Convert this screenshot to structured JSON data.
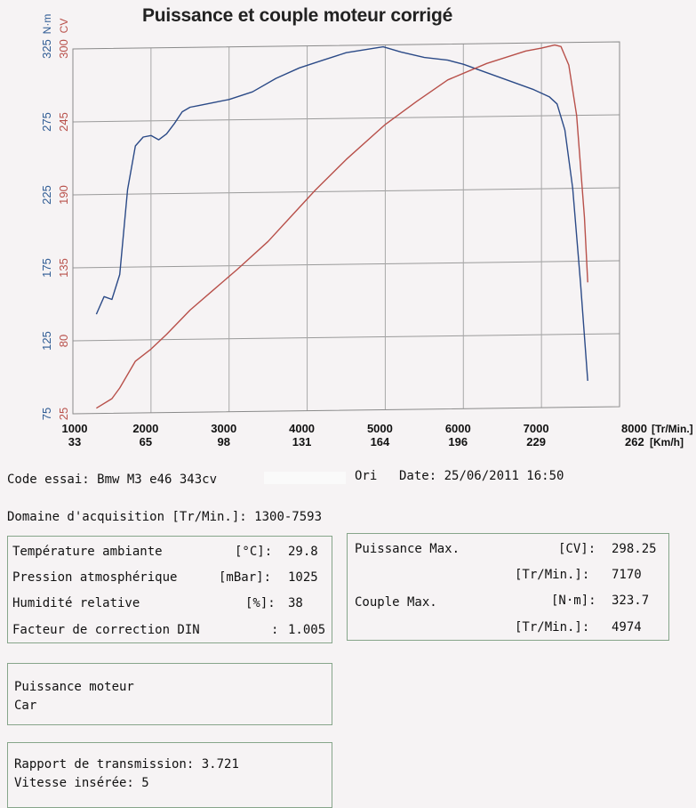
{
  "chart_data": {
    "type": "line",
    "title": "Puissance et couple moteur corrigé",
    "x_unit": "[Tr/Min.]",
    "x2_unit": "[Km/h]",
    "xlim": [
      1000,
      8000
    ],
    "x_ticks": [
      1000,
      2000,
      3000,
      4000,
      5000,
      6000,
      7000,
      8000
    ],
    "x2_ticks": [
      "33",
      "65",
      "98",
      "131",
      "164",
      "196",
      "229",
      "262"
    ],
    "y_left_unit": "N·m",
    "y_left_ticks": [
      75,
      125,
      175,
      225,
      275,
      325
    ],
    "y_left_range": [
      75,
      325
    ],
    "y_right_unit": "CV",
    "y_right_ticks": [
      25,
      80,
      135,
      190,
      245,
      300
    ],
    "y_right_range": [
      25,
      300
    ],
    "grid": true,
    "colors": {
      "torque": "#2b4a87",
      "power": "#b8504a",
      "left_axis": "#2d5a93",
      "right_axis": "#b8504a"
    },
    "series": [
      {
        "axis": "left",
        "x": [
          1300,
          1400,
          1500,
          1600,
          1700,
          1800,
          1900,
          2000,
          2100,
          2200,
          2300,
          2400,
          2500,
          2600,
          2800,
          3000,
          3300,
          3600,
          3900,
          4200,
          4500,
          4974,
          5200,
          5500,
          5800,
          6000,
          6300,
          6600,
          6900,
          7100,
          7200,
          7300,
          7400,
          7500,
          7593
        ],
        "values": [
          143,
          155,
          153,
          170,
          228,
          258,
          264,
          265,
          262,
          266,
          273,
          281,
          284,
          285,
          287,
          289,
          294,
          303,
          310,
          315,
          320,
          323.7,
          320,
          316,
          314,
          311,
          305,
          299,
          293,
          288,
          283,
          265,
          225,
          160,
          93
        ]
      },
      {
        "axis": "right",
        "x": [
          1300,
          1500,
          1600,
          1800,
          2000,
          2200,
          2500,
          2800,
          3100,
          3500,
          3800,
          4100,
          4500,
          5000,
          5400,
          5800,
          6300,
          6800,
          7000,
          7170,
          7250,
          7350,
          7450,
          7550,
          7593
        ],
        "values": [
          29,
          36,
          44,
          64,
          73,
          84,
          102,
          117,
          132,
          153,
          172,
          191,
          214,
          240,
          257,
          273,
          285,
          294,
          296,
          298.25,
          297,
          283,
          245,
          168,
          119
        ]
      }
    ]
  },
  "test": {
    "label": "Code essai:",
    "value": "Bmw M3 e46 343cv",
    "ori": "Ori",
    "date_label": "Date:",
    "date_value": "25/06/2011 16:50"
  },
  "acquisition": {
    "label": "Domaine d'acquisition [Tr/Min.]:",
    "value": "1300-7593"
  },
  "conditions": [
    {
      "label": "Température ambiante",
      "unit": "[°C]:",
      "value": "29.8"
    },
    {
      "label": "Pression atmosphérique",
      "unit": "[mBar]:",
      "value": "1025"
    },
    {
      "label": "Humidité relative",
      "unit": "[%]:",
      "value": "38"
    },
    {
      "label": "Facteur de correction DIN",
      "unit": ":",
      "value": "1.005"
    }
  ],
  "maxima": {
    "power_label": "Puissance Max.",
    "power_unit": "[CV]:",
    "power_value": "298.25",
    "power_rpm_unit": "[Tr/Min.]:",
    "power_rpm": "7170",
    "torque_label": "Couple Max.",
    "torque_unit": "[N·m]:",
    "torque_value": "323.7",
    "torque_rpm_unit": "[Tr/Min.]:",
    "torque_rpm": "4974"
  },
  "mode": {
    "line1": "Puissance moteur",
    "line2": "Car"
  },
  "transmission": {
    "ratio_label": "Rapport de transmission:",
    "ratio_value": "3.721",
    "gear_label": "Vitesse insérée:",
    "gear_value": "5"
  }
}
